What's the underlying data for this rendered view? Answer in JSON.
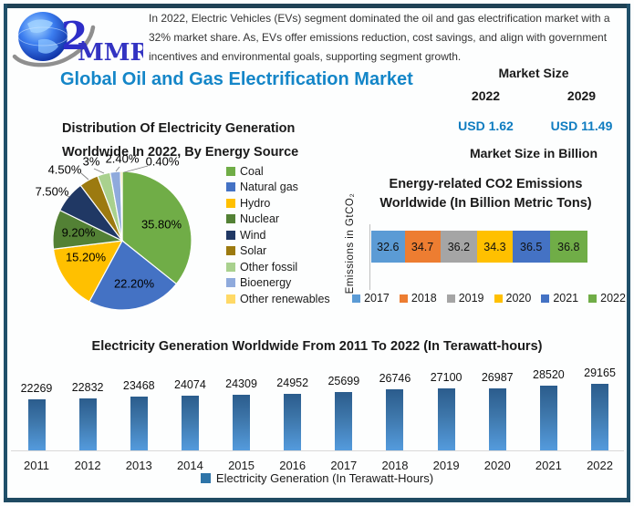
{
  "logo": {
    "text": "MMR",
    "swoosh_char": "2"
  },
  "header": {
    "note_lines": [
      "In 2022, Electric Vehicles (EVs) segment dominated the oil and gas electrification market with a",
      "32% market share. As, EVs offer emissions reduction, cost savings, and align with government",
      "incentives and environmental goals, supporting segment growth."
    ],
    "title": "Global Oil and Gas Electrification Market",
    "title_color": "#1486c8"
  },
  "market_size": {
    "heading": "Market Size",
    "year_left": "2022",
    "year_right": "2029",
    "value_left": "USD 1.62",
    "value_right": "USD 11.49",
    "caption": "Market Size in Billion",
    "value_color": "#0f7cc0"
  },
  "chart_data": [
    {
      "id": "energy_source_pie",
      "type": "pie",
      "title_lines": [
        "Distribution Of Electricity Generation",
        "Worldwide In 2022, By Energy Source"
      ],
      "categories": [
        "Coal",
        "Natural gas",
        "Hydro",
        "Nuclear",
        "Wind",
        "Solar",
        "Other fossil",
        "Bioenergy",
        "Other renewables"
      ],
      "values": [
        35.8,
        22.2,
        15.2,
        9.2,
        7.5,
        4.5,
        3.0,
        2.4,
        0.4
      ],
      "labels": [
        "35.80%",
        "22.20%",
        "15.20%",
        "9.20%",
        "7.50%",
        "4.50%",
        "3%",
        "2.40%",
        "0.40%"
      ],
      "colors": [
        "#70AD47",
        "#4472C4",
        "#FFC000",
        "#538135",
        "#203864",
        "#9C7A10",
        "#A9D18E",
        "#8FAADC",
        "#FFD966"
      ],
      "legend_position": "right"
    },
    {
      "id": "co2_emissions",
      "type": "bar",
      "subtype": "horizontal-stacked",
      "title_lines": [
        "Energy-related CO2 Emissions",
        "Worldwide (In Billion Metric Tons)"
      ],
      "ylabel": "Emissions in GtCO₂",
      "categories": [
        "2017",
        "2018",
        "2019",
        "2020",
        "2021",
        "2022"
      ],
      "values": [
        32.6,
        34.7,
        36.2,
        34.3,
        36.5,
        36.8
      ],
      "colors": [
        "#5B9BD5",
        "#ED7D31",
        "#A5A5A5",
        "#FFC000",
        "#4472C4",
        "#70AD47"
      ],
      "legend_position": "bottom"
    },
    {
      "id": "electricity_generation",
      "type": "bar",
      "title": "Electricity Generation Worldwide From 2011 To 2022 (In Terawatt-hours)",
      "categories": [
        "2011",
        "2012",
        "2013",
        "2014",
        "2015",
        "2016",
        "2017",
        "2018",
        "2019",
        "2020",
        "2021",
        "2022"
      ],
      "values": [
        22269,
        22832,
        23468,
        24074,
        24309,
        24952,
        25699,
        26746,
        27100,
        26987,
        28520,
        29165
      ],
      "ylim": [
        0,
        29165
      ],
      "legend_label": "Electricity Generation (In Terawatt-Hours)",
      "legend_position": "bottom",
      "bar_color_top": "#2b5c8c",
      "bar_color_bottom": "#549bdd"
    }
  ]
}
